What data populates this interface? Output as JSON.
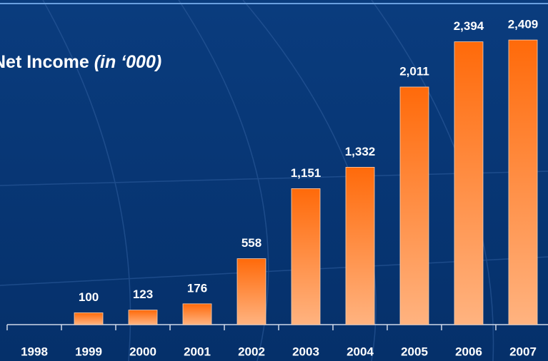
{
  "chart_data": {
    "type": "bar",
    "title": "Net Income",
    "subtitle": "(in ‘000)",
    "categories": [
      "1998",
      "1999",
      "2000",
      "2001",
      "2002",
      "2003",
      "2004",
      "2005",
      "2006",
      "2007"
    ],
    "values": [
      0,
      100,
      123,
      176,
      558,
      1151,
      1332,
      2011,
      2394,
      2409
    ],
    "value_labels": [
      null,
      "100",
      "123",
      "176",
      "558",
      "1,151",
      "1,332",
      "2,011",
      "2,394",
      "2,409"
    ],
    "color": "#ff6a00",
    "ylim": [
      0,
      2500
    ]
  }
}
